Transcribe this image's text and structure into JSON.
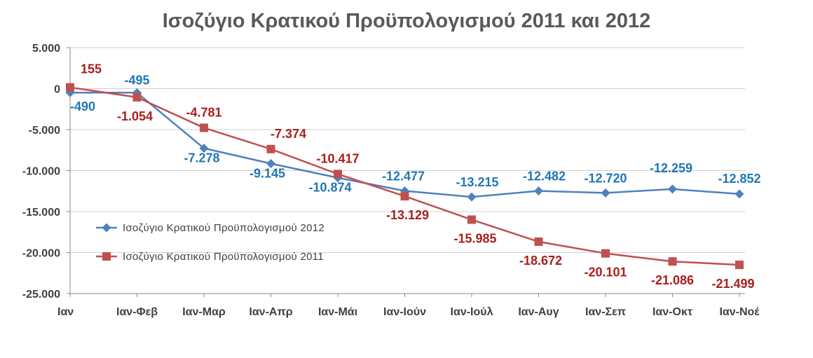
{
  "chart_data": {
    "type": "line",
    "title": "Ισοζύγιο Κρατικού Προϋπολογισμού 2011 και 2012",
    "categories": [
      "Ιαν",
      "Ιαν-Φεβ",
      "Ιαν-Μαρ",
      "Ιαν-Απρ",
      "Ιαν-Μάι",
      "Ιαν-Ιούν",
      "Ιαν-Ιούλ",
      "Ιαν-Αυγ",
      "Ιαν-Σεπ",
      "Ιαν-Οκτ",
      "Ιαν-Νοέ"
    ],
    "ylim": [
      -25000,
      5000
    ],
    "yticks": [
      5000,
      0,
      -5000,
      -10000,
      -15000,
      -20000,
      -25000
    ],
    "ytick_labels": [
      "5.000",
      "0",
      "-5.000",
      "-10.000",
      "-15.000",
      "-20.000",
      "-25.000"
    ],
    "grid": true,
    "legend_position": "left-middle",
    "series": [
      {
        "name": "Ισοζύγιο Κρατικού Προϋπολογισμού 2012",
        "color": "#4F81BD",
        "label_color": "#1F77B4",
        "marker": "diamond",
        "values": [
          -490,
          -495,
          -7278,
          -9145,
          -10874,
          -12477,
          -13215,
          -12482,
          -12720,
          -12259,
          -12852
        ],
        "labels": [
          "-490",
          "-495",
          "-7.278",
          "-9.145",
          "-10.874",
          "-12.477",
          "-13.215",
          "-12.482",
          "-12.720",
          "-12.259",
          "-12.852"
        ]
      },
      {
        "name": "Ισοζύγιο Κρατικού Προϋπολογισμού 2011",
        "color": "#C0504D",
        "label_color": "#A91E1E",
        "marker": "square",
        "values": [
          155,
          -1054,
          -4781,
          -7374,
          -10417,
          -13129,
          -15985,
          -18672,
          -20101,
          -21086,
          -21499
        ],
        "labels": [
          "155",
          "-1.054",
          "-4.781",
          "-7.374",
          "-10.417",
          "-13.129",
          "-15.985",
          "-18.672",
          "-20.101",
          "-21.086",
          "-21.499"
        ]
      }
    ]
  }
}
